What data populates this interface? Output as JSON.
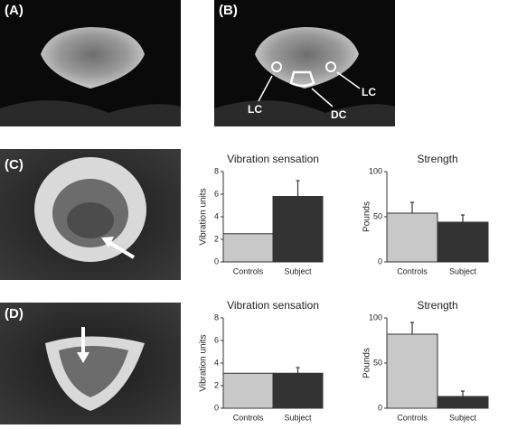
{
  "panels": {
    "a": "(A)",
    "b": "(B)",
    "c": "(C)",
    "d": "(D)"
  },
  "annotations": {
    "lc_left": "LC",
    "lc_right": "LC",
    "dc": "DC"
  },
  "chart_data": [
    {
      "type": "bar",
      "title": "Vibration sensation",
      "ylabel": "Vibration units",
      "categories": [
        "Controls",
        "Subject"
      ],
      "values": [
        2.5,
        5.8
      ],
      "errors": [
        null,
        1.4
      ],
      "colors": [
        "#c8c8c8",
        "#333333"
      ],
      "ylim": [
        0,
        8
      ],
      "yticks": [
        0,
        2,
        4,
        6,
        8
      ]
    },
    {
      "type": "bar",
      "title": "Strength",
      "ylabel": "Pounds",
      "categories": [
        "Controls",
        "Subject"
      ],
      "values": [
        54,
        44
      ],
      "errors": [
        12,
        8
      ],
      "colors": [
        "#c8c8c8",
        "#333333"
      ],
      "ylim": [
        0,
        100
      ],
      "yticks": [
        0,
        50,
        100
      ]
    },
    {
      "type": "bar",
      "title": "Vibration sensation",
      "ylabel": "Vibration units",
      "categories": [
        "Controls",
        "Subject"
      ],
      "values": [
        3.1,
        3.1
      ],
      "errors": [
        null,
        0.5
      ],
      "colors": [
        "#c8c8c8",
        "#333333"
      ],
      "ylim": [
        0,
        8
      ],
      "yticks": [
        0,
        2,
        4,
        6,
        8
      ]
    },
    {
      "type": "bar",
      "title": "Strength",
      "ylabel": "Pounds",
      "categories": [
        "Controls",
        "Subject"
      ],
      "values": [
        82,
        13
      ],
      "errors": [
        13,
        6
      ],
      "colors": [
        "#c8c8c8",
        "#333333"
      ],
      "ylim": [
        0,
        100
      ],
      "yticks": [
        0,
        50,
        100
      ]
    }
  ]
}
